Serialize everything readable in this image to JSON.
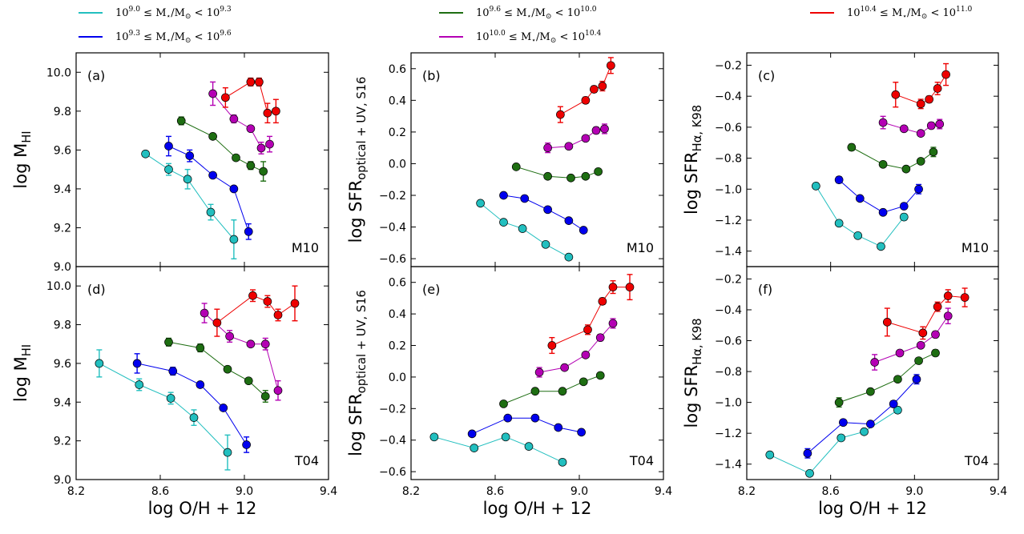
{
  "chart_data": {
    "type": "line",
    "x_label_main": "log O/H + 12",
    "x_ticks": [
      "8.2",
      "8.6",
      "9.0",
      "9.4"
    ],
    "x_tick_values": [
      8.2,
      8.6,
      9.0,
      9.4
    ],
    "xlim": [
      8.2,
      9.4
    ],
    "colors": {
      "cyan": "#22BFBF",
      "blue": "#0000EE",
      "green": "#1E6E12",
      "magenta": "#B400B4",
      "red": "#EE0000"
    },
    "legend": [
      {
        "key": "cyan",
        "lo": "9.0",
        "hi": "9.3"
      },
      {
        "key": "blue",
        "lo": "9.3",
        "hi": "9.6"
      },
      {
        "key": "green",
        "lo": "9.6",
        "hi": "10.0"
      },
      {
        "key": "magenta",
        "lo": "10.0",
        "hi": "10.4"
      },
      {
        "key": "red",
        "lo": "10.4",
        "hi": "11.0"
      }
    ],
    "legend_fixed": {
      "ineq": "≤",
      "lt": "<",
      "ten": "10",
      "mstar_main": "M",
      "mstar_sub": "⋆",
      "slash": "/",
      "msun_main": "M",
      "msun_sub": "⊙"
    },
    "ylabels": {
      "mhi": {
        "main": "log M",
        "sub": "HI"
      },
      "sfr_opt": {
        "main": "log SFR",
        "sub": "optical + UV, S16"
      },
      "sfr_ha": {
        "main": "log SFR",
        "sub": "Hα, K98"
      }
    },
    "panels": [
      {
        "label": "(a)",
        "calib": "M10",
        "ylabel": "mhi",
        "ylim": [
          9.0,
          10.1
        ],
        "yticks": [
          "9.0",
          "9.2",
          "9.4",
          "9.6",
          "9.8",
          "10.0"
        ],
        "ytick_values": [
          9.0,
          9.2,
          9.4,
          9.6,
          9.8,
          10.0
        ],
        "series": [
          {
            "color": "cyan",
            "x": [
              8.53,
              8.64,
              8.73,
              8.84,
              8.95
            ],
            "y": [
              9.58,
              9.5,
              9.45,
              9.28,
              9.14
            ],
            "err": [
              0.01,
              0.03,
              0.05,
              0.04,
              0.1
            ]
          },
          {
            "color": "blue",
            "x": [
              8.64,
              8.74,
              8.85,
              8.95,
              9.02
            ],
            "y": [
              9.62,
              9.57,
              9.47,
              9.4,
              9.18
            ],
            "err": [
              0.05,
              0.03,
              0.01,
              0.01,
              0.04
            ]
          },
          {
            "color": "green",
            "x": [
              8.7,
              8.85,
              8.96,
              9.03,
              9.09
            ],
            "y": [
              9.75,
              9.67,
              9.56,
              9.52,
              9.49
            ],
            "err": [
              0.02,
              0.01,
              0.01,
              0.02,
              0.05
            ]
          },
          {
            "color": "magenta",
            "x": [
              8.85,
              8.95,
              9.03,
              9.08,
              9.12
            ],
            "y": [
              9.89,
              9.76,
              9.71,
              9.61,
              9.63
            ],
            "err": [
              0.06,
              0.02,
              0.01,
              0.03,
              0.04
            ]
          },
          {
            "color": "red",
            "x": [
              8.91,
              9.03,
              9.07,
              9.11,
              9.15
            ],
            "y": [
              9.87,
              9.95,
              9.95,
              9.79,
              9.8
            ],
            "err": [
              0.05,
              0.02,
              0.02,
              0.05,
              0.06
            ]
          }
        ]
      },
      {
        "label": "(b)",
        "calib": "M10",
        "ylabel": "sfr_opt",
        "ylim": [
          -0.65,
          0.7
        ],
        "yticks": [
          "−0.6",
          "−0.4",
          "−0.2",
          "0.0",
          "0.2",
          "0.4",
          "0.6"
        ],
        "ytick_values": [
          -0.6,
          -0.4,
          -0.2,
          0.0,
          0.2,
          0.4,
          0.6
        ],
        "series": [
          {
            "color": "cyan",
            "x": [
              8.53,
              8.64,
              8.73,
              8.84,
              8.95
            ],
            "y": [
              -0.25,
              -0.37,
              -0.41,
              -0.51,
              -0.59
            ],
            "err": [
              0,
              0,
              0,
              0,
              0
            ]
          },
          {
            "color": "blue",
            "x": [
              8.64,
              8.74,
              8.85,
              8.95,
              9.02
            ],
            "y": [
              -0.2,
              -0.22,
              -0.29,
              -0.36,
              -0.42
            ],
            "err": [
              0,
              0,
              0,
              0,
              0
            ]
          },
          {
            "color": "green",
            "x": [
              8.7,
              8.85,
              8.96,
              9.03,
              9.09
            ],
            "y": [
              -0.02,
              -0.08,
              -0.09,
              -0.08,
              -0.05
            ],
            "err": [
              0,
              0,
              0,
              0,
              0
            ]
          },
          {
            "color": "magenta",
            "x": [
              8.85,
              8.95,
              9.03,
              9.08,
              9.12
            ],
            "y": [
              0.1,
              0.11,
              0.16,
              0.21,
              0.22
            ],
            "err": [
              0.03,
              0.01,
              0.01,
              0.02,
              0.03
            ]
          },
          {
            "color": "red",
            "x": [
              8.91,
              9.03,
              9.07,
              9.11,
              9.15
            ],
            "y": [
              0.31,
              0.4,
              0.47,
              0.49,
              0.62
            ],
            "err": [
              0.05,
              0.02,
              0.02,
              0.03,
              0.05
            ]
          }
        ]
      },
      {
        "label": "(c)",
        "calib": "M10",
        "ylabel": "sfr_ha",
        "ylim": [
          -1.5,
          -0.12
        ],
        "yticks": [
          "−1.4",
          "−1.2",
          "−1.0",
          "−0.8",
          "−0.6",
          "−0.4",
          "−0.2"
        ],
        "ytick_values": [
          -1.4,
          -1.2,
          -1.0,
          -0.8,
          -0.6,
          -0.4,
          -0.2
        ],
        "series": [
          {
            "color": "cyan",
            "x": [
              8.53,
              8.64,
              8.73,
              8.84,
              8.95
            ],
            "y": [
              -0.98,
              -1.22,
              -1.3,
              -1.37,
              -1.18
            ],
            "err": [
              0.02,
              0,
              0,
              0,
              0.02
            ]
          },
          {
            "color": "blue",
            "x": [
              8.64,
              8.74,
              8.85,
              8.95,
              9.02
            ],
            "y": [
              -0.94,
              -1.06,
              -1.15,
              -1.11,
              -1.0
            ],
            "err": [
              0.02,
              0,
              0,
              0,
              0.03
            ]
          },
          {
            "color": "green",
            "x": [
              8.7,
              8.85,
              8.96,
              9.03,
              9.09
            ],
            "y": [
              -0.73,
              -0.84,
              -0.87,
              -0.82,
              -0.76
            ],
            "err": [
              0.02,
              0,
              0,
              0,
              0.03
            ]
          },
          {
            "color": "magenta",
            "x": [
              8.85,
              8.95,
              9.03,
              9.08,
              9.12
            ],
            "y": [
              -0.57,
              -0.61,
              -0.64,
              -0.59,
              -0.58
            ],
            "err": [
              0.04,
              0.01,
              0.01,
              0.02,
              0.03
            ]
          },
          {
            "color": "red",
            "x": [
              8.91,
              9.03,
              9.07,
              9.11,
              9.15
            ],
            "y": [
              -0.39,
              -0.45,
              -0.42,
              -0.35,
              -0.26
            ],
            "err": [
              0.08,
              0.03,
              0.02,
              0.04,
              0.07
            ]
          }
        ]
      },
      {
        "label": "(d)",
        "calib": "T04",
        "ylabel": "mhi",
        "ylim": [
          9.0,
          10.1
        ],
        "yticks": [
          "9.0",
          "9.2",
          "9.4",
          "9.6",
          "9.8",
          "10.0"
        ],
        "ytick_values": [
          9.0,
          9.2,
          9.4,
          9.6,
          9.8,
          10.0
        ],
        "series": [
          {
            "color": "cyan",
            "x": [
              8.31,
              8.5,
              8.65,
              8.76,
              8.92
            ],
            "y": [
              9.6,
              9.49,
              9.42,
              9.32,
              9.14
            ],
            "err": [
              0.07,
              0.03,
              0.03,
              0.04,
              0.09
            ]
          },
          {
            "color": "blue",
            "x": [
              8.49,
              8.66,
              8.79,
              8.9,
              9.01
            ],
            "y": [
              9.6,
              9.56,
              9.49,
              9.37,
              9.18
            ],
            "err": [
              0.05,
              0.02,
              0.01,
              0.01,
              0.04
            ]
          },
          {
            "color": "green",
            "x": [
              8.64,
              8.79,
              8.92,
              9.02,
              9.1
            ],
            "y": [
              9.71,
              9.68,
              9.57,
              9.51,
              9.43
            ],
            "err": [
              0.02,
              0.02,
              0.01,
              0.01,
              0.03
            ]
          },
          {
            "color": "magenta",
            "x": [
              8.81,
              8.93,
              9.03,
              9.1,
              9.16
            ],
            "y": [
              9.86,
              9.74,
              9.7,
              9.7,
              9.46
            ],
            "err": [
              0.05,
              0.03,
              0.01,
              0.03,
              0.05
            ]
          },
          {
            "color": "red",
            "x": [
              8.87,
              9.04,
              9.11,
              9.16,
              9.24
            ],
            "y": [
              9.81,
              9.95,
              9.92,
              9.85,
              9.91
            ],
            "err": [
              0.07,
              0.03,
              0.03,
              0.03,
              0.09
            ]
          }
        ]
      },
      {
        "label": "(e)",
        "calib": "T04",
        "ylabel": "sfr_opt",
        "ylim": [
          -0.65,
          0.7
        ],
        "yticks": [
          "−0.6",
          "−0.4",
          "−0.2",
          "0.0",
          "0.2",
          "0.4",
          "0.6"
        ],
        "ytick_values": [
          -0.6,
          -0.4,
          -0.2,
          0.0,
          0.2,
          0.4,
          0.6
        ],
        "series": [
          {
            "color": "cyan",
            "x": [
              8.31,
              8.5,
              8.65,
              8.76,
              8.92
            ],
            "y": [
              -0.38,
              -0.45,
              -0.38,
              -0.44,
              -0.54
            ],
            "err": [
              0,
              0,
              0,
              0,
              0
            ]
          },
          {
            "color": "blue",
            "x": [
              8.49,
              8.66,
              8.79,
              8.9,
              9.01
            ],
            "y": [
              -0.36,
              -0.26,
              -0.26,
              -0.32,
              -0.35
            ],
            "err": [
              0,
              0,
              0,
              0,
              0
            ]
          },
          {
            "color": "green",
            "x": [
              8.64,
              8.79,
              8.92,
              9.02,
              9.1
            ],
            "y": [
              -0.17,
              -0.09,
              -0.09,
              -0.03,
              0.01
            ],
            "err": [
              0,
              0,
              0,
              0,
              0
            ]
          },
          {
            "color": "magenta",
            "x": [
              8.81,
              8.93,
              9.03,
              9.1,
              9.16
            ],
            "y": [
              0.03,
              0.06,
              0.14,
              0.25,
              0.34
            ],
            "err": [
              0.03,
              0.01,
              0.01,
              0.02,
              0.03
            ]
          },
          {
            "color": "red",
            "x": [
              8.87,
              9.04,
              9.11,
              9.16,
              9.24
            ],
            "y": [
              0.2,
              0.3,
              0.48,
              0.57,
              0.57
            ],
            "err": [
              0.05,
              0.03,
              0.02,
              0.04,
              0.08
            ]
          }
        ]
      },
      {
        "label": "(f)",
        "calib": "T04",
        "ylabel": "sfr_ha",
        "ylim": [
          -1.5,
          -0.12
        ],
        "yticks": [
          "−1.4",
          "−1.2",
          "−1.0",
          "−0.8",
          "−0.6",
          "−0.4",
          "−0.2"
        ],
        "ytick_values": [
          -1.4,
          -1.2,
          -1.0,
          -0.8,
          -0.6,
          -0.4,
          -0.2
        ],
        "series": [
          {
            "color": "cyan",
            "x": [
              8.31,
              8.5,
              8.65,
              8.76,
              8.92
            ],
            "y": [
              -1.34,
              -1.46,
              -1.23,
              -1.19,
              -1.05
            ],
            "err": [
              0,
              0,
              0,
              0,
              0.02
            ]
          },
          {
            "color": "blue",
            "x": [
              8.49,
              8.66,
              8.79,
              8.9,
              9.01
            ],
            "y": [
              -1.33,
              -1.13,
              -1.14,
              -1.01,
              -0.85
            ],
            "err": [
              0.03,
              0,
              0,
              0.02,
              0.03
            ]
          },
          {
            "color": "green",
            "x": [
              8.64,
              8.79,
              8.92,
              9.02,
              9.1
            ],
            "y": [
              -1.0,
              -0.93,
              -0.85,
              -0.73,
              -0.68
            ],
            "err": [
              0.03,
              0,
              0,
              0,
              0.02
            ]
          },
          {
            "color": "magenta",
            "x": [
              8.81,
              8.93,
              9.03,
              9.1,
              9.16
            ],
            "y": [
              -0.74,
              -0.68,
              -0.63,
              -0.56,
              -0.44
            ],
            "err": [
              0.05,
              0.01,
              0.01,
              0.02,
              0.05
            ]
          },
          {
            "color": "red",
            "x": [
              8.87,
              9.04,
              9.11,
              9.16,
              9.24
            ],
            "y": [
              -0.48,
              -0.55,
              -0.38,
              -0.31,
              -0.32
            ],
            "err": [
              0.09,
              0.04,
              0.03,
              0.04,
              0.06
            ]
          }
        ]
      }
    ]
  }
}
